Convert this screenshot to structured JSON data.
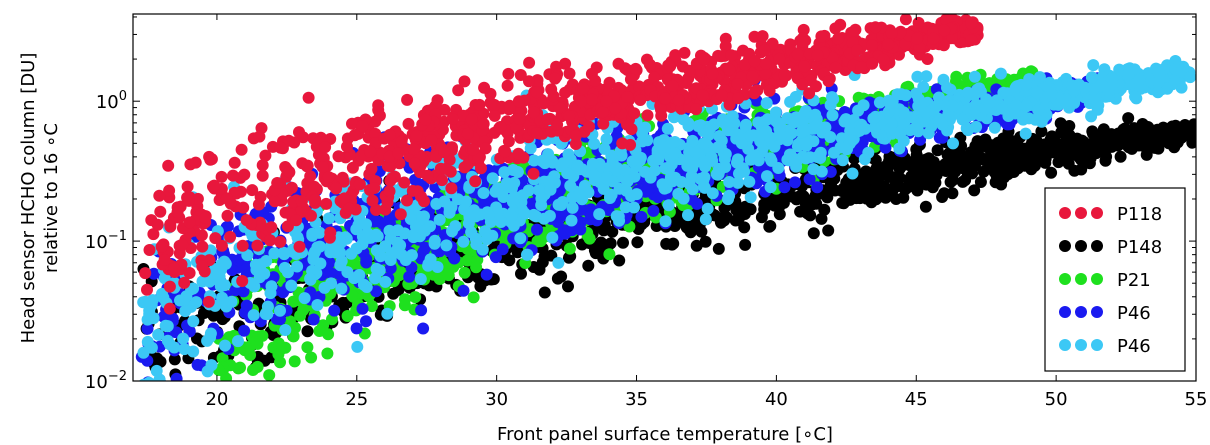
{
  "chart_data": {
    "type": "scatter",
    "title": "",
    "xlabel": "Front panel surface temperature [∘C]",
    "ylabel_line1": "Head sensor HCHO column [DU]",
    "ylabel_line2": "relative to 16 ∘C",
    "xlim": [
      17,
      55
    ],
    "ylim": [
      0.01,
      4.2
    ],
    "yscale": "log",
    "grid": false,
    "legend_position": "lower-right",
    "x_ticks": [
      20,
      25,
      30,
      35,
      40,
      45,
      50,
      55
    ],
    "y_ticks": [
      {
        "value": 0.01,
        "base": "10",
        "exp": "−2"
      },
      {
        "value": 0.1,
        "base": "10",
        "exp": "−1"
      },
      {
        "value": 1,
        "base": "10",
        "exp": "0"
      }
    ],
    "series": [
      {
        "name": "P118",
        "color": "#e8173c",
        "x_start": 17.3,
        "x_end": 47.2,
        "y_start": 0.06,
        "y_end": 3.3,
        "noise": 0.35
      },
      {
        "name": "P148",
        "color": "#000000",
        "x_start": 17.3,
        "x_end": 55.0,
        "y_start": 0.012,
        "y_end": 0.62,
        "noise": 0.35
      },
      {
        "name": "P21",
        "color": "#1ee01e",
        "x_start": 20.0,
        "x_end": 49.2,
        "y_start": 0.012,
        "y_end": 1.35,
        "noise": 0.4
      },
      {
        "name": "P46",
        "color": "#1a1af0",
        "x_start": 17.3,
        "x_end": 51.5,
        "y_start": 0.02,
        "y_end": 1.2,
        "noise": 0.45
      },
      {
        "name": "P46",
        "color": "#3cc8f5",
        "x_start": 17.3,
        "x_end": 54.8,
        "y_start": 0.02,
        "y_end": 1.6,
        "noise": 0.45
      }
    ],
    "outliers": [
      {
        "series": "P148",
        "x": 46.0,
        "y": 0.22
      }
    ]
  }
}
